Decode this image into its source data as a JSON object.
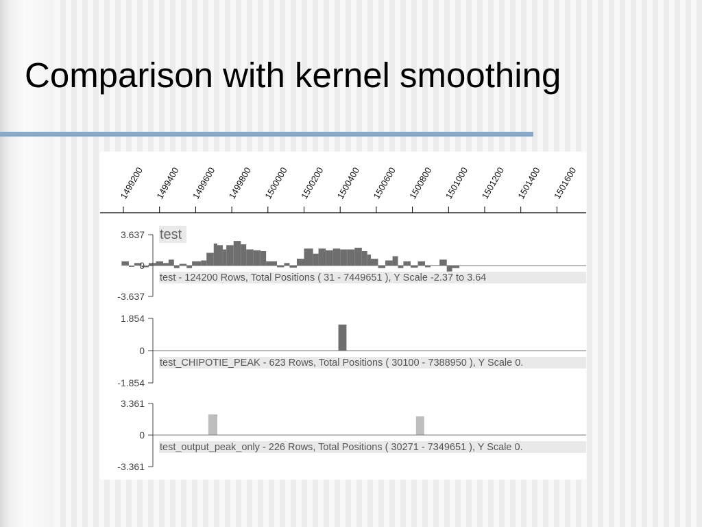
{
  "slide": {
    "title": "Comparison with kernel smoothing",
    "rule_color": "#8aa9c6"
  },
  "chart_data": {
    "type": "bar",
    "x_ticks": [
      "1499200",
      "1499400",
      "1499600",
      "1499800",
      "1500000",
      "1500200",
      "1500400",
      "1500600",
      "1500800",
      "1501000",
      "1501200",
      "1501400",
      "1501600"
    ],
    "tracks": [
      {
        "name": "test",
        "description": "test - 124200 Rows, Total Positions ( 31 - 7449651 ), Y Scale -2.37 to 3.64",
        "y_ticks": [
          "3.637",
          "0",
          "-3.637"
        ],
        "ylim": [
          -3.637,
          3.637
        ],
        "color": "#6e6e6e",
        "bins": [
          {
            "x0": 1499190,
            "x1": 1499230,
            "y": 0.5
          },
          {
            "x0": 1499230,
            "x1": 1499260,
            "y": -0.15
          },
          {
            "x0": 1499260,
            "x1": 1499300,
            "y": 0.3
          },
          {
            "x0": 1499300,
            "x1": 1499340,
            "y": -0.2
          },
          {
            "x0": 1499340,
            "x1": 1499380,
            "y": 0.3
          },
          {
            "x0": 1499380,
            "x1": 1499420,
            "y": 0.5
          },
          {
            "x0": 1499420,
            "x1": 1499450,
            "y": 0.3
          },
          {
            "x0": 1499450,
            "x1": 1499480,
            "y": 0.7
          },
          {
            "x0": 1499480,
            "x1": 1499510,
            "y": -0.3
          },
          {
            "x0": 1499510,
            "x1": 1499550,
            "y": 0.2
          },
          {
            "x0": 1499550,
            "x1": 1499580,
            "y": -0.3
          },
          {
            "x0": 1499580,
            "x1": 1499630,
            "y": 0.5
          },
          {
            "x0": 1499630,
            "x1": 1499660,
            "y": 0.6
          },
          {
            "x0": 1499660,
            "x1": 1499700,
            "y": 1.5
          },
          {
            "x0": 1499700,
            "x1": 1499720,
            "y": 2.6
          },
          {
            "x0": 1499720,
            "x1": 1499750,
            "y": 2.4
          },
          {
            "x0": 1499750,
            "x1": 1499770,
            "y": 1.9
          },
          {
            "x0": 1499770,
            "x1": 1499810,
            "y": 2.4
          },
          {
            "x0": 1499810,
            "x1": 1499850,
            "y": 2.9
          },
          {
            "x0": 1499850,
            "x1": 1499880,
            "y": 2.5
          },
          {
            "x0": 1499880,
            "x1": 1499920,
            "y": 1.9
          },
          {
            "x0": 1499920,
            "x1": 1499960,
            "y": 1.8
          },
          {
            "x0": 1499960,
            "x1": 1499990,
            "y": 1.7
          },
          {
            "x0": 1499990,
            "x1": 1500050,
            "y": 0.5
          },
          {
            "x0": 1500050,
            "x1": 1500090,
            "y": -0.2
          },
          {
            "x0": 1500090,
            "x1": 1500120,
            "y": 0.3
          },
          {
            "x0": 1500120,
            "x1": 1500160,
            "y": -0.25
          },
          {
            "x0": 1500160,
            "x1": 1500200,
            "y": 0.8
          },
          {
            "x0": 1500200,
            "x1": 1500250,
            "y": 2.0
          },
          {
            "x0": 1500250,
            "x1": 1500280,
            "y": 1.4
          },
          {
            "x0": 1500280,
            "x1": 1500320,
            "y": 2.0
          },
          {
            "x0": 1500320,
            "x1": 1500360,
            "y": 1.8
          },
          {
            "x0": 1500360,
            "x1": 1500400,
            "y": 2.0
          },
          {
            "x0": 1500400,
            "x1": 1500440,
            "y": 1.9
          },
          {
            "x0": 1500440,
            "x1": 1500480,
            "y": 1.9
          },
          {
            "x0": 1500480,
            "x1": 1500520,
            "y": 2.1
          },
          {
            "x0": 1500520,
            "x1": 1500550,
            "y": 1.7
          },
          {
            "x0": 1500550,
            "x1": 1500570,
            "y": 1.3
          },
          {
            "x0": 1500570,
            "x1": 1500610,
            "y": 0.8
          },
          {
            "x0": 1500610,
            "x1": 1500650,
            "y": -0.3
          },
          {
            "x0": 1500650,
            "x1": 1500690,
            "y": 0.6
          },
          {
            "x0": 1500690,
            "x1": 1500720,
            "y": 1.1
          },
          {
            "x0": 1500720,
            "x1": 1500750,
            "y": -0.3
          },
          {
            "x0": 1500750,
            "x1": 1500790,
            "y": 0.5
          },
          {
            "x0": 1500790,
            "x1": 1500830,
            "y": -0.25
          },
          {
            "x0": 1500830,
            "x1": 1500870,
            "y": 0.5
          },
          {
            "x0": 1500870,
            "x1": 1500900,
            "y": -0.2
          },
          {
            "x0": 1500900,
            "x1": 1500950,
            "y": 0.05
          },
          {
            "x0": 1500950,
            "x1": 1500990,
            "y": 0.7
          },
          {
            "x0": 1500990,
            "x1": 1501020,
            "y": -0.7
          },
          {
            "x0": 1501020,
            "x1": 1501060,
            "y": -0.3
          }
        ]
      },
      {
        "name": "",
        "description": "test_CHIPOTIE_PEAK - 623 Rows, Total Positions ( 30100 - 7388950 ), Y Scale 0.",
        "y_ticks": [
          "1.854",
          "0",
          "-1.854"
        ],
        "ylim": [
          -1.854,
          1.854
        ],
        "color": "#6e6e6e",
        "bins": [
          {
            "x0": 1500390,
            "x1": 1500435,
            "y": 1.5
          }
        ]
      },
      {
        "name": "",
        "description": "test_output_peak_only - 226 Rows, Total Positions ( 30271 - 7349651 ), Y Scale 0.",
        "y_ticks": [
          "3.361",
          "0",
          "-3.361"
        ],
        "ylim": [
          -3.361,
          3.361
        ],
        "color": "#bdbdbd",
        "bins": [
          {
            "x0": 1499670,
            "x1": 1499720,
            "y": 2.2
          },
          {
            "x0": 1500820,
            "x1": 1500865,
            "y": 2.0
          }
        ]
      }
    ]
  }
}
